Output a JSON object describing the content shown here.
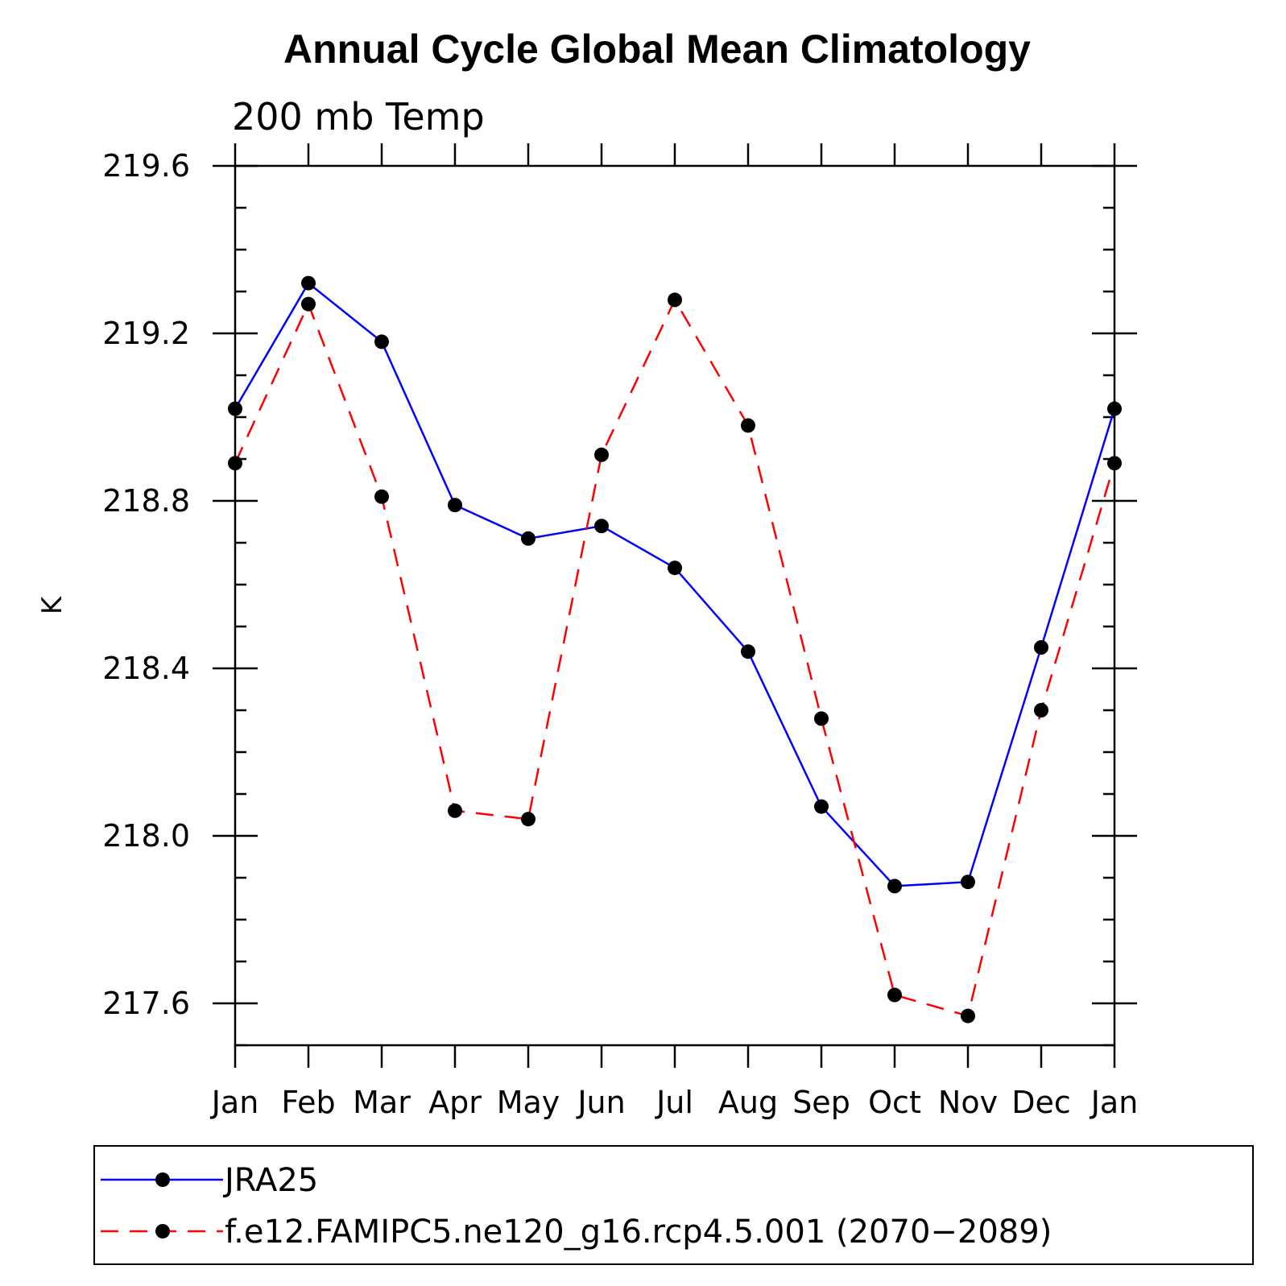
{
  "chart_data": {
    "type": "line",
    "title": "Annual Cycle Global Mean Climatology",
    "subtitle": "200 mb Temp",
    "ylabel": "K",
    "xlabel": "",
    "categories": [
      "Jan",
      "Feb",
      "Mar",
      "Apr",
      "May",
      "Jun",
      "Jul",
      "Aug",
      "Sep",
      "Oct",
      "Nov",
      "Dec",
      "Jan"
    ],
    "ylim": [
      217.5,
      219.6
    ],
    "yticks": [
      "217.6",
      "218.0",
      "218.4",
      "218.8",
      "219.2",
      "219.6"
    ],
    "series": [
      {
        "name": "JRA25",
        "color": "#0000ff",
        "style": "solid",
        "values": [
          219.02,
          219.32,
          219.18,
          218.79,
          218.71,
          218.74,
          218.64,
          218.44,
          218.07,
          217.88,
          217.89,
          218.45,
          219.02
        ]
      },
      {
        "name": "f.e12.FAMIPC5.ne120_g16.rcp4.5.001 (2070−2089)",
        "color": "#ff0000",
        "style": "dashed",
        "values": [
          218.89,
          219.27,
          218.81,
          218.06,
          218.04,
          218.91,
          219.28,
          218.98,
          218.28,
          217.62,
          217.57,
          218.3,
          218.89
        ]
      }
    ]
  }
}
